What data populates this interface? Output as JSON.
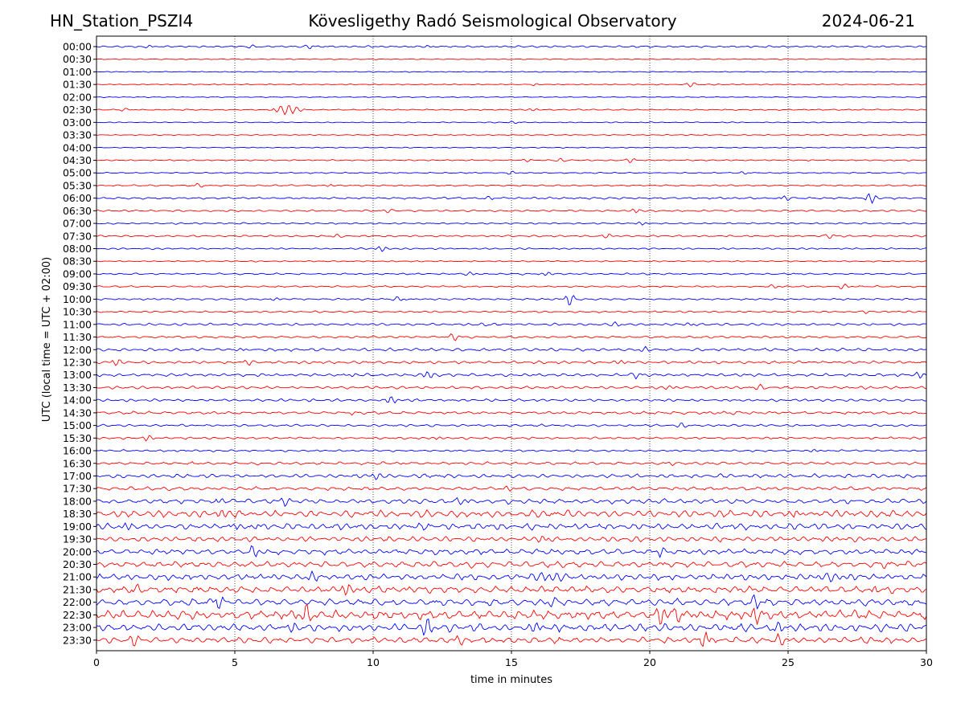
{
  "header": {
    "station": "HN_Station_PSZI4",
    "observatory": "Kövesligethy Radó Seismological Observatory",
    "date": "2024-06-21"
  },
  "chart_data": {
    "type": "line",
    "title": "Kövesligethy Radó Seismological Observatory",
    "xlabel": "time in minutes",
    "ylabel": "UTC (local time = UTC + 02:00)",
    "xlim": [
      0,
      30
    ],
    "x_ticks": [
      0,
      5,
      10,
      15,
      20,
      25,
      30
    ],
    "grid": "vertical dotted lines at 5-minute intervals",
    "colors": {
      "even": "#0000ff",
      "odd": "#ff0000"
    },
    "traces": [
      {
        "label": "00:00",
        "amp": 1.2,
        "events": [
          {
            "t": 1.9,
            "a": 2.5
          },
          {
            "t": 5.6,
            "a": 1.8
          },
          {
            "t": 7.7,
            "a": 2.6
          },
          {
            "t": 12.0,
            "a": 1.5
          }
        ]
      },
      {
        "label": "00:30",
        "amp": 0.6,
        "events": []
      },
      {
        "label": "01:00",
        "amp": 0.6,
        "events": []
      },
      {
        "label": "01:30",
        "amp": 0.7,
        "events": [
          {
            "t": 21.5,
            "a": 3
          },
          {
            "t": 15.8,
            "a": 1.8
          }
        ]
      },
      {
        "label": "02:00",
        "amp": 0.6,
        "events": []
      },
      {
        "label": "02:30",
        "amp": 0.8,
        "events": [
          {
            "t": 6.9,
            "a": 6,
            "w": 0.45
          },
          {
            "t": 1.0,
            "a": 2
          },
          {
            "t": 15.8,
            "a": 2
          }
        ]
      },
      {
        "label": "03:00",
        "amp": 0.6,
        "events": [
          {
            "t": 15.1,
            "a": 2
          }
        ]
      },
      {
        "label": "03:30",
        "amp": 0.6,
        "events": []
      },
      {
        "label": "04:00",
        "amp": 0.6,
        "events": []
      },
      {
        "label": "04:30",
        "amp": 0.8,
        "events": [
          {
            "t": 16.8,
            "a": 2.5
          },
          {
            "t": 19.3,
            "a": 2.5
          },
          {
            "t": 15.6,
            "a": 2
          }
        ]
      },
      {
        "label": "05:00",
        "amp": 0.8,
        "events": [
          {
            "t": 15.0,
            "a": 2.5
          },
          {
            "t": 23.4,
            "a": 2
          }
        ]
      },
      {
        "label": "05:30",
        "amp": 1.0,
        "events": [
          {
            "t": 3.7,
            "a": 3
          },
          {
            "t": 8.5,
            "a": 2
          }
        ]
      },
      {
        "label": "06:00",
        "amp": 1.3,
        "events": [
          {
            "t": 28.0,
            "a": 7
          },
          {
            "t": 24.9,
            "a": 3.5
          },
          {
            "t": 14.2,
            "a": 2
          }
        ]
      },
      {
        "label": "06:30",
        "amp": 1.2,
        "events": [
          {
            "t": 19.5,
            "a": 3
          },
          {
            "t": 10.6,
            "a": 2
          }
        ]
      },
      {
        "label": "07:00",
        "amp": 1.0,
        "events": [
          {
            "t": 19.7,
            "a": 3
          }
        ]
      },
      {
        "label": "07:30",
        "amp": 1.1,
        "events": [
          {
            "t": 26.5,
            "a": 3
          },
          {
            "t": 8.7,
            "a": 2
          },
          {
            "t": 18.5,
            "a": 2.5
          }
        ]
      },
      {
        "label": "08:00",
        "amp": 1.0,
        "events": [
          {
            "t": 10.3,
            "a": 4
          }
        ]
      },
      {
        "label": "08:30",
        "amp": 0.8,
        "events": []
      },
      {
        "label": "09:00",
        "amp": 1.1,
        "events": [
          {
            "t": 16.3,
            "a": 3
          },
          {
            "t": 13.5,
            "a": 2
          }
        ]
      },
      {
        "label": "09:30",
        "amp": 1.1,
        "events": [
          {
            "t": 27.0,
            "a": 3
          },
          {
            "t": 24.5,
            "a": 2
          }
        ]
      },
      {
        "label": "10:00",
        "amp": 1.2,
        "events": [
          {
            "t": 17.1,
            "a": 9
          },
          {
            "t": 10.9,
            "a": 3
          },
          {
            "t": 6.5,
            "a": 2
          }
        ]
      },
      {
        "label": "10:30",
        "amp": 1.1,
        "events": [
          {
            "t": 27.8,
            "a": 2
          }
        ]
      },
      {
        "label": "11:00",
        "amp": 1.5,
        "events": [
          {
            "t": 18.8,
            "a": 2.5
          },
          {
            "t": 21.4,
            "a": 3
          },
          {
            "t": 14.0,
            "a": 2
          }
        ]
      },
      {
        "label": "11:30",
        "amp": 1.4,
        "events": [
          {
            "t": 12.9,
            "a": 4
          }
        ]
      },
      {
        "label": "12:00",
        "amp": 1.9,
        "events": [
          {
            "t": 5.2,
            "a": 3
          },
          {
            "t": 19.8,
            "a": 3
          }
        ]
      },
      {
        "label": "12:30",
        "amp": 1.8,
        "events": [
          {
            "t": 0.7,
            "a": 4
          },
          {
            "t": 5.5,
            "a": 3
          },
          {
            "t": 19.0,
            "a": 3
          }
        ]
      },
      {
        "label": "13:00",
        "amp": 1.8,
        "events": [
          {
            "t": 12.0,
            "a": 5
          },
          {
            "t": 19.5,
            "a": 3.5
          },
          {
            "t": 29.8,
            "a": 4
          },
          {
            "t": 9.2,
            "a": 3
          }
        ]
      },
      {
        "label": "13:30",
        "amp": 1.7,
        "events": [
          {
            "t": 24.0,
            "a": 3
          },
          {
            "t": 20.7,
            "a": 2.5
          }
        ]
      },
      {
        "label": "14:00",
        "amp": 1.6,
        "events": [
          {
            "t": 10.7,
            "a": 5
          }
        ]
      },
      {
        "label": "14:30",
        "amp": 1.8,
        "events": [
          {
            "t": 9.2,
            "a": 3
          },
          {
            "t": 23.0,
            "a": 2
          }
        ]
      },
      {
        "label": "15:00",
        "amp": 1.5,
        "events": [
          {
            "t": 21.2,
            "a": 3
          }
        ]
      },
      {
        "label": "15:30",
        "amp": 1.4,
        "events": [
          {
            "t": 1.9,
            "a": 4
          },
          {
            "t": 12.3,
            "a": 2
          }
        ]
      },
      {
        "label": "16:00",
        "amp": 1.3,
        "events": [
          {
            "t": 26.0,
            "a": 2
          }
        ]
      },
      {
        "label": "16:30",
        "amp": 1.8,
        "events": [
          {
            "t": 11.0,
            "a": 2.5
          },
          {
            "t": 20.8,
            "a": 2.5
          }
        ]
      },
      {
        "label": "17:00",
        "amp": 2.4,
        "events": [
          {
            "t": 10.1,
            "a": 5
          }
        ]
      },
      {
        "label": "17:30",
        "amp": 2.2,
        "events": [
          {
            "t": 14.9,
            "a": 3.5
          }
        ]
      },
      {
        "label": "18:00",
        "amp": 3.0,
        "events": [
          {
            "t": 4.5,
            "a": 5
          },
          {
            "t": 6.8,
            "a": 5
          },
          {
            "t": 27.2,
            "a": 5
          },
          {
            "t": 13.2,
            "a": 4
          }
        ]
      },
      {
        "label": "18:30",
        "amp": 4.5,
        "events": [
          {
            "t": 25.3,
            "a": 8
          },
          {
            "t": 4.5,
            "a": 6
          },
          {
            "t": 28.8,
            "a": 5
          }
        ]
      },
      {
        "label": "19:00",
        "amp": 4.0,
        "events": [
          {
            "t": 1.0,
            "a": 6
          },
          {
            "t": 5.0,
            "a": 6
          },
          {
            "t": 5.8,
            "a": 5
          }
        ]
      },
      {
        "label": "19:30",
        "amp": 3.2,
        "events": [
          {
            "t": 16.1,
            "a": 5
          }
        ]
      },
      {
        "label": "20:00",
        "amp": 3.4,
        "events": [
          {
            "t": 5.7,
            "a": 8
          },
          {
            "t": 20.4,
            "a": 5
          }
        ]
      },
      {
        "label": "20:30",
        "amp": 3.8,
        "events": [
          {
            "t": 28.5,
            "a": 5
          }
        ]
      },
      {
        "label": "21:00",
        "amp": 3.6,
        "events": [
          {
            "t": 16.3,
            "a": 6,
            "w": 0.6
          },
          {
            "t": 26.4,
            "a": 5,
            "w": 0.7
          },
          {
            "t": 7.8,
            "a": 6
          }
        ]
      },
      {
        "label": "21:30",
        "amp": 4.4,
        "events": [
          {
            "t": 1.5,
            "a": 7
          },
          {
            "t": 9.0,
            "a": 9
          },
          {
            "t": 28.1,
            "a": 6
          }
        ]
      },
      {
        "label": "22:00",
        "amp": 4.3,
        "events": [
          {
            "t": 4.4,
            "a": 9
          },
          {
            "t": 23.8,
            "a": 9
          },
          {
            "t": 16.5,
            "a": 6
          }
        ]
      },
      {
        "label": "22:30",
        "amp": 5.5,
        "events": [
          {
            "t": 20.4,
            "a": 12
          },
          {
            "t": 21.0,
            "a": 10
          },
          {
            "t": 23.8,
            "a": 11
          },
          {
            "t": 7.6,
            "a": 9
          }
        ]
      },
      {
        "label": "23:00",
        "amp": 5.0,
        "events": [
          {
            "t": 12.0,
            "a": 12
          },
          {
            "t": 7.0,
            "a": 8
          },
          {
            "t": 24.6,
            "a": 8
          },
          {
            "t": 15.9,
            "a": 8
          }
        ]
      },
      {
        "label": "23:30",
        "amp": 3.8,
        "events": [
          {
            "t": 22.0,
            "a": 12
          },
          {
            "t": 1.4,
            "a": 7
          },
          {
            "t": 13.1,
            "a": 5
          },
          {
            "t": 24.7,
            "a": 6
          }
        ]
      }
    ]
  }
}
